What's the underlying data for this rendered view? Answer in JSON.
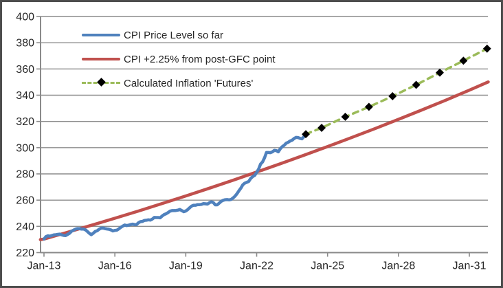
{
  "window": {
    "background": "#ffffff",
    "border_color": "#4d4d4d"
  },
  "legend": {
    "position": "top-left-inside-plot",
    "items": [
      {
        "label": "CPI Price Level so far",
        "color": "#4F81BD",
        "style": "solid"
      },
      {
        "label": "CPI +2.25% from post-GFC point",
        "color": "#C0504D",
        "style": "solid"
      },
      {
        "label": "Calculated Inflation 'Futures'",
        "color": "#9BBB59",
        "style": "dashed-diamond",
        "marker_color": "#000000"
      }
    ]
  },
  "axes_style": {
    "grid_color": "#8c8c8c",
    "axis_color": "#8a8a8a",
    "tick_color": "#8a8a8a",
    "label_color": "#262626",
    "tick_font_size": 16
  },
  "chart_data": {
    "type": "line",
    "title": "",
    "xlabel": "",
    "ylabel": "",
    "grid": "horizontal-only",
    "x_unit": "years since Jan-2013",
    "xlim": [
      -0.15,
      18.85
    ],
    "ylim": [
      220,
      400
    ],
    "y_ticks": [
      220,
      240,
      260,
      280,
      300,
      320,
      340,
      360,
      380,
      400
    ],
    "x_tick_positions": [
      0,
      3,
      6,
      9,
      12,
      15,
      18
    ],
    "x_tick_labels": [
      "Jan-13",
      "Jan-16",
      "Jan-19",
      "Jan-22",
      "Jan-25",
      "Jan-28",
      "Jan-31"
    ],
    "series": [
      {
        "name": "CPI Price Level so far",
        "color": "#4F81BD",
        "style": "solid",
        "width": 4.5,
        "x_start": 0,
        "x_step": 0.0833333,
        "values": [
          230.3,
          232.2,
          232.8,
          232.5,
          233.0,
          233.5,
          233.6,
          233.9,
          234.1,
          233.5,
          233.1,
          233.0,
          233.9,
          234.8,
          236.3,
          237.1,
          237.9,
          238.3,
          238.3,
          237.9,
          238.0,
          237.4,
          236.2,
          234.8,
          233.7,
          234.7,
          236.1,
          236.6,
          237.8,
          238.6,
          238.7,
          238.3,
          238.0,
          237.8,
          237.3,
          236.5,
          236.9,
          237.1,
          238.1,
          239.3,
          240.2,
          241.0,
          240.6,
          240.9,
          241.4,
          241.7,
          241.4,
          241.4,
          242.8,
          243.6,
          243.8,
          244.5,
          244.7,
          245.0,
          244.8,
          245.5,
          246.8,
          246.7,
          246.7,
          246.5,
          247.9,
          249.0,
          249.6,
          250.5,
          251.6,
          252.0,
          252.0,
          252.1,
          252.4,
          252.9,
          252.0,
          251.2,
          251.7,
          252.8,
          254.2,
          255.5,
          256.1,
          256.1,
          256.6,
          256.6,
          256.8,
          257.3,
          257.2,
          257.0,
          258.0,
          258.7,
          258.1,
          256.4,
          256.4,
          257.8,
          259.1,
          259.9,
          260.3,
          260.4,
          260.2,
          260.5,
          261.6,
          263.0,
          264.9,
          267.1,
          269.2,
          271.7,
          273.0,
          273.6,
          274.3,
          276.6,
          278.0,
          278.8,
          281.1,
          283.7,
          287.5,
          289.1,
          292.3,
          296.3,
          296.3,
          296.2,
          296.8,
          298.0,
          297.7,
          296.8,
          299.2,
          300.8,
          301.8,
          303.4,
          304.1,
          305.1,
          305.7,
          307.0,
          307.8,
          307.7,
          307.1,
          306.7,
          308.4,
          310.3
        ]
      },
      {
        "name": "CPI +2.25% from post-GFC point",
        "color": "#C0504D",
        "style": "solid",
        "width": 4.5,
        "x": [
          -0.15,
          0,
          1,
          2,
          3,
          4,
          5,
          6,
          7,
          8,
          9,
          10,
          11,
          12,
          13,
          14,
          15,
          16,
          17,
          18,
          18.8
        ],
        "values": [
          229.9,
          230.3,
          235.5,
          240.8,
          246.2,
          251.7,
          257.4,
          263.2,
          269.1,
          275.2,
          281.4,
          287.7,
          294.2,
          300.8,
          307.6,
          314.5,
          321.6,
          328.8,
          336.2,
          343.8,
          350.1
        ]
      },
      {
        "name": "Calculated Inflation 'Futures'",
        "color": "#9BBB59",
        "style": "dashed",
        "width": 3.5,
        "marker": "diamond",
        "marker_color": "#000000",
        "x": [
          11.08,
          11.75,
          12.75,
          13.75,
          14.75,
          15.75,
          16.75,
          17.75,
          18.75
        ],
        "values": [
          310.3,
          315.1,
          323.5,
          331.1,
          339.2,
          347.9,
          357.2,
          366.3,
          375.5
        ]
      }
    ]
  }
}
